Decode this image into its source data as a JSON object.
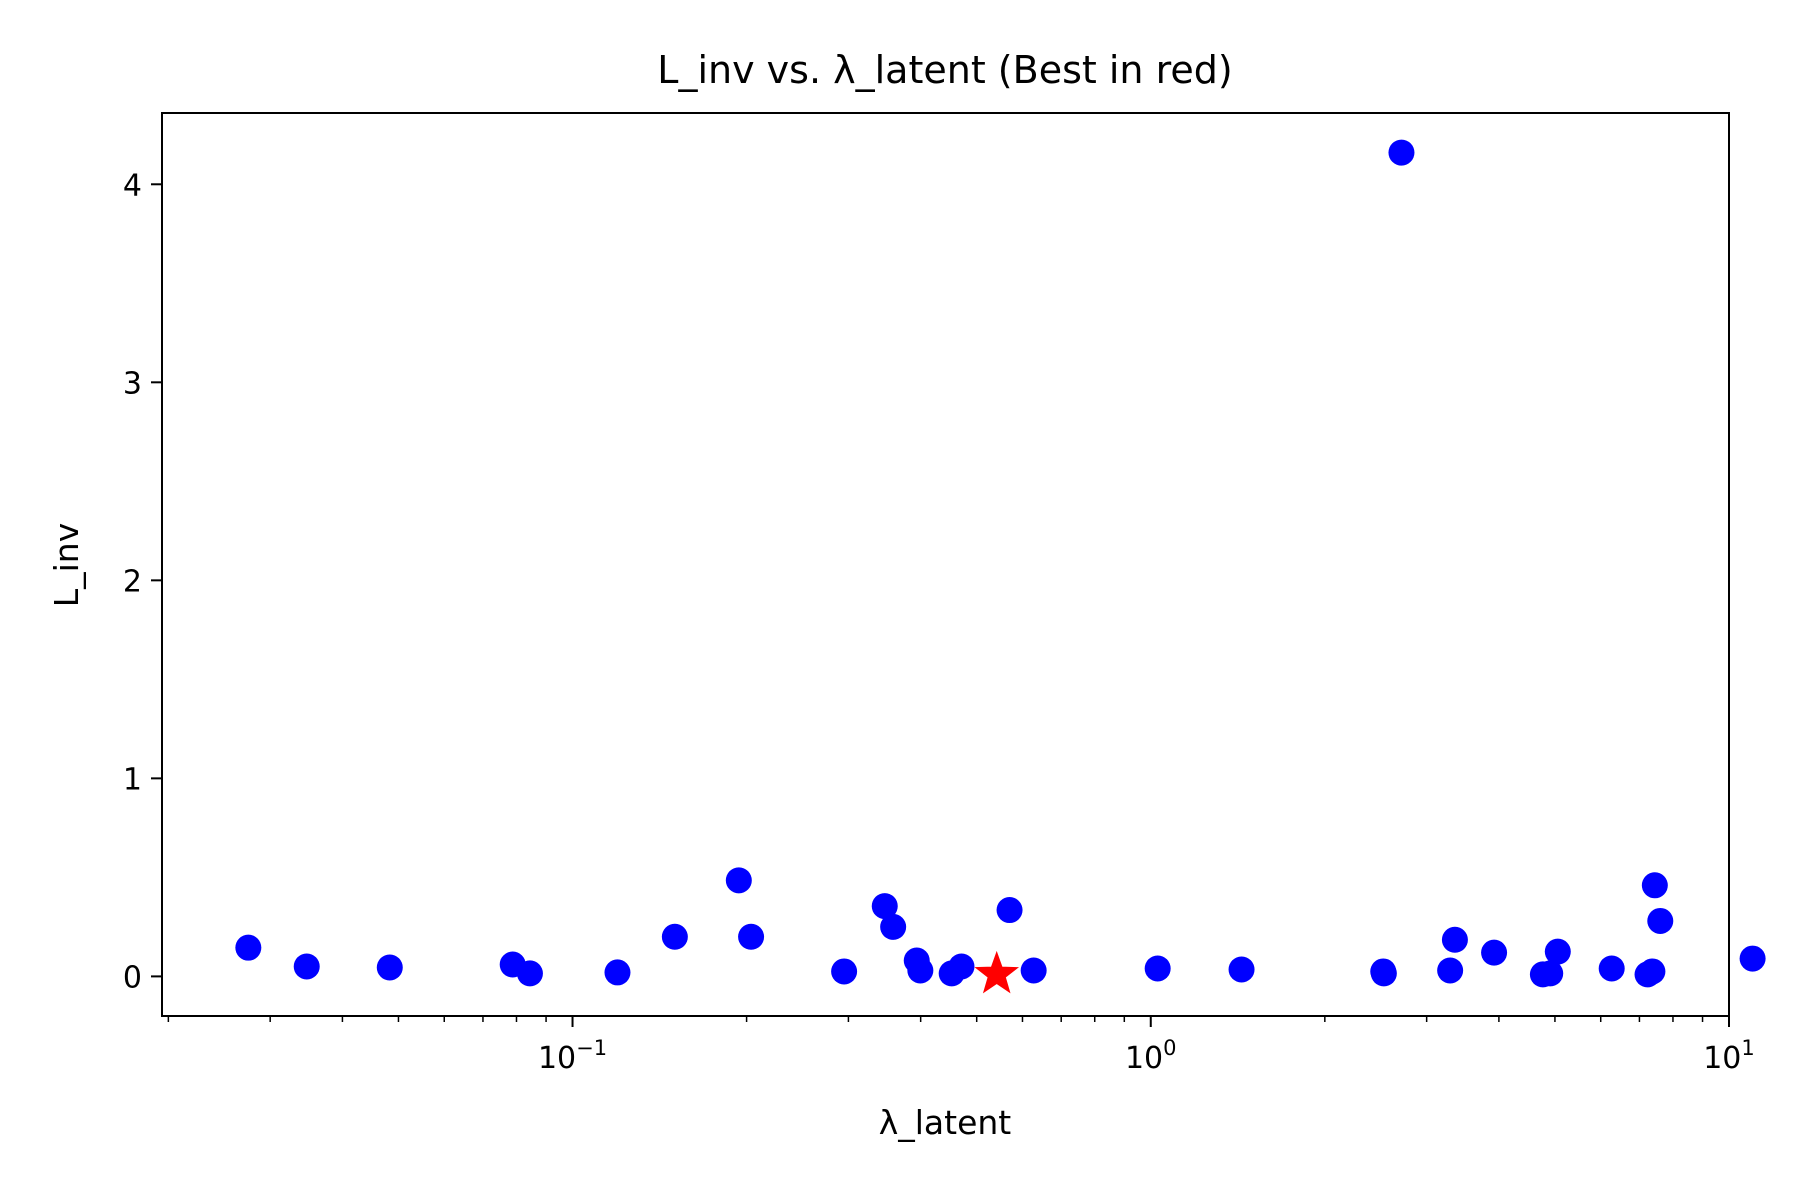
{
  "chart_data": {
    "type": "scatter",
    "title": "L_inv vs. λ_latent (Best in red)",
    "xlabel": "λ_latent",
    "ylabel": "L_inv",
    "xscale": "log",
    "xlim": [
      0.0195,
      10
    ],
    "ylim": [
      -0.2,
      4.36
    ],
    "grid": false,
    "xticks": [
      {
        "value": 0.1,
        "base": "10",
        "exp": "−1"
      },
      {
        "value": 1,
        "base": "10",
        "exp": "0"
      },
      {
        "value": 10,
        "base": "10",
        "exp": "1"
      }
    ],
    "yticks": [
      {
        "value": 0,
        "label": "0"
      },
      {
        "value": 1,
        "label": "1"
      },
      {
        "value": 2,
        "label": "2"
      },
      {
        "value": 3,
        "label": "3"
      },
      {
        "value": 4,
        "label": "4"
      }
    ],
    "series": [
      {
        "color": "#0000ff",
        "marker": "circle",
        "points": [
          {
            "x": 0.0275,
            "y": 0.145
          },
          {
            "x": 0.0347,
            "y": 0.05
          },
          {
            "x": 0.0483,
            "y": 0.045
          },
          {
            "x": 0.0788,
            "y": 0.06
          },
          {
            "x": 0.0844,
            "y": 0.015
          },
          {
            "x": 0.1196,
            "y": 0.02
          },
          {
            "x": 0.1503,
            "y": 0.2
          },
          {
            "x": 0.1939,
            "y": 0.485
          },
          {
            "x": 0.2036,
            "y": 0.2
          },
          {
            "x": 0.2949,
            "y": 0.025
          },
          {
            "x": 0.3467,
            "y": 0.355
          },
          {
            "x": 0.3585,
            "y": 0.25
          },
          {
            "x": 0.3938,
            "y": 0.08
          },
          {
            "x": 0.3995,
            "y": 0.03
          },
          {
            "x": 0.4526,
            "y": 0.015
          },
          {
            "x": 0.4706,
            "y": 0.05
          },
          {
            "x": 0.5699,
            "y": 0.335
          },
          {
            "x": 0.6273,
            "y": 0.03
          },
          {
            "x": 1.0279,
            "y": 0.04
          },
          {
            "x": 1.4355,
            "y": 0.035
          },
          {
            "x": 2.5239,
            "y": 0.025
          },
          {
            "x": 2.5299,
            "y": 0.015
          },
          {
            "x": 2.7137,
            "y": 4.16
          },
          {
            "x": 3.2942,
            "y": 0.03
          },
          {
            "x": 3.3573,
            "y": 0.185
          },
          {
            "x": 3.924,
            "y": 0.12
          },
          {
            "x": 4.7659,
            "y": 0.01
          },
          {
            "x": 4.9069,
            "y": 0.015
          },
          {
            "x": 5.0573,
            "y": 0.125
          },
          {
            "x": 6.2682,
            "y": 0.04
          },
          {
            "x": 7.2295,
            "y": 0.01
          },
          {
            "x": 7.3711,
            "y": 0.025
          },
          {
            "x": 7.4428,
            "y": 0.46
          },
          {
            "x": 7.6058,
            "y": 0.28
          },
          {
            "x": 10.9853,
            "y": 0.09
          }
        ]
      },
      {
        "color": "#ff0000",
        "marker": "star",
        "points": [
          {
            "x": 0.5415,
            "y": 0.01
          }
        ]
      }
    ]
  }
}
